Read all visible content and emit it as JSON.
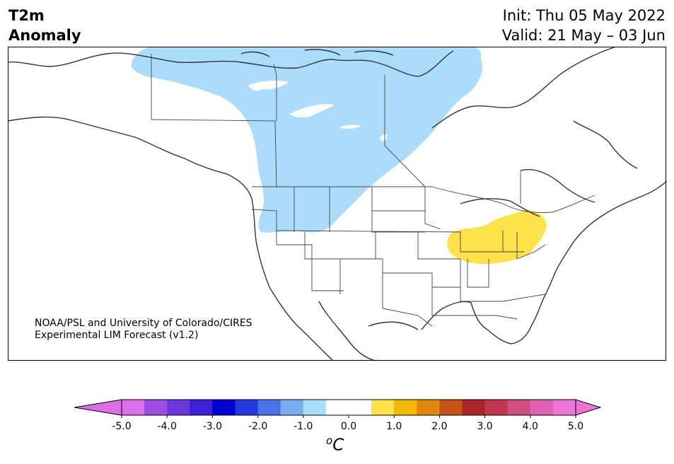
{
  "header": {
    "variable": "T2m",
    "field": "Anomaly",
    "init": "Init: Thu 05 May 2022",
    "valid": "Valid: 21 May – 03 Jun"
  },
  "credit": {
    "line1": "NOAA/PSL and University of Colorado/CIRES",
    "line2": "Experimental LIM Forecast (v1.2)"
  },
  "anomaly_regions": [
    {
      "category": "-0.5 to -1.0 °C",
      "color": "#abdcfb",
      "area": "northwestern Canada and Pacific Northwest US"
    },
    {
      "category": "+0.5 to +1.0 °C",
      "color": "#fde24b",
      "area": "Ohio Valley and Great Lakes"
    }
  ],
  "colorbar": {
    "tick_labels": [
      "-5.0",
      "-4.0",
      "-3.0",
      "-2.0",
      "-1.0",
      "0.0",
      "1.0",
      "2.0",
      "3.0",
      "4.0",
      "5.0"
    ],
    "unit_base": "C",
    "unit_sup": "o",
    "colors": [
      "#dc6ee9",
      "#9b4fe0",
      "#6a37dc",
      "#3f1fd6",
      "#0000d0",
      "#2638dd",
      "#4b71e9",
      "#78aef1",
      "#abdcfb",
      "#ffffff",
      "#ffffff",
      "#fde24b",
      "#f3b905",
      "#e0880e",
      "#c6541a",
      "#ab2427",
      "#c13550",
      "#cf4e7d",
      "#dd62b0",
      "#eb76d7"
    ],
    "under_color": "#dc6ee9",
    "over_color": "#eb76d7"
  }
}
